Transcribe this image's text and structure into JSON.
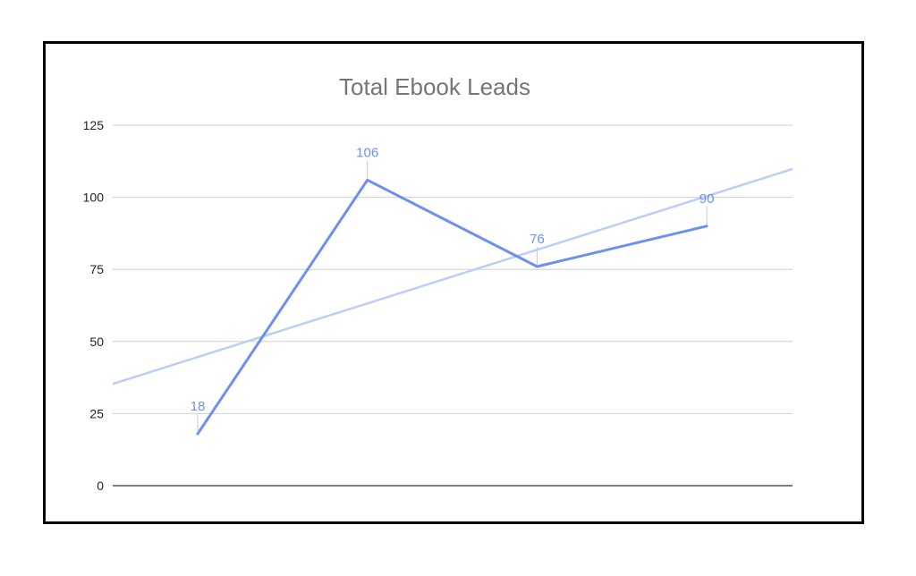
{
  "chart_data": {
    "type": "line",
    "title": "Total Ebook Leads",
    "xlabel": "",
    "ylabel": "",
    "ylim": [
      0,
      125
    ],
    "y_ticks": [
      0,
      25,
      50,
      75,
      100,
      125
    ],
    "grid": true,
    "legend": "none",
    "x": [
      1,
      2,
      3,
      4
    ],
    "series": [
      {
        "values": [
          18,
          106,
          76,
          90
        ],
        "data_labels": [
          "18",
          "106",
          "76",
          "90"
        ]
      }
    ],
    "trendline": {
      "type": "linear",
      "shown": true
    },
    "colors": {
      "series": "#6d8ff0",
      "trendline": "#bccdf7",
      "grid": "#d0d0d0",
      "axis": "#333333",
      "title": "#757575"
    }
  }
}
